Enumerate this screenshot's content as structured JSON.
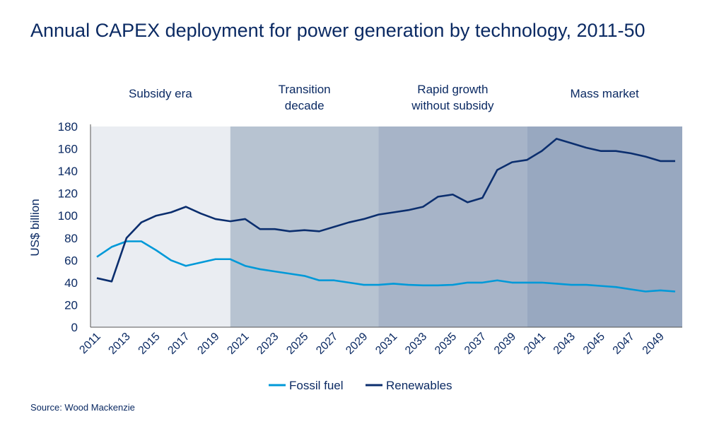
{
  "title": "Annual CAPEX deployment for power generation by technology, 2011-50",
  "source": "Source: Wood Mackenzie",
  "colors": {
    "fossil": "#0099d8",
    "renewables": "#0b2e6e",
    "text": "#0b2a63",
    "era_fills": [
      "#eaedf2",
      "#b7c3d1",
      "#a7b4c8",
      "#98a8c0"
    ]
  },
  "chart_data": {
    "type": "line",
    "title": "Annual CAPEX deployment for power generation by technology, 2011-50",
    "ylabel": "US$ billion",
    "xlabel": "",
    "ylim": [
      0,
      180
    ],
    "yticks": [
      0,
      20,
      40,
      60,
      80,
      100,
      120,
      140,
      160,
      180
    ],
    "grid": false,
    "legend": "bottom",
    "x": [
      2011,
      2012,
      2013,
      2014,
      2015,
      2016,
      2017,
      2018,
      2019,
      2020,
      2021,
      2022,
      2023,
      2024,
      2025,
      2026,
      2027,
      2028,
      2029,
      2030,
      2031,
      2032,
      2033,
      2034,
      2035,
      2036,
      2037,
      2038,
      2039,
      2040,
      2041,
      2042,
      2043,
      2044,
      2045,
      2046,
      2047,
      2048,
      2049,
      2050
    ],
    "xtick_labels": [
      "2011",
      "2013",
      "2015",
      "2017",
      "2019",
      "2021",
      "2023",
      "2025",
      "2027",
      "2029",
      "2031",
      "2033",
      "2035",
      "2037",
      "2039",
      "2041",
      "2043",
      "2045",
      "2047",
      "2049"
    ],
    "series": [
      {
        "name": "Fossil fuel",
        "values": [
          63,
          72,
          77,
          77,
          69,
          60,
          55,
          58,
          61,
          61,
          55,
          52,
          50,
          48,
          46,
          42,
          42,
          40,
          38,
          38,
          39,
          38,
          37.5,
          37.5,
          38,
          40,
          40,
          42,
          40,
          40,
          40,
          39,
          38,
          38,
          37,
          36,
          34,
          32,
          33,
          32
        ]
      },
      {
        "name": "Renewables",
        "values": [
          44,
          41,
          80,
          94,
          100,
          103,
          108,
          102,
          97,
          95,
          97,
          88,
          88,
          86,
          87,
          86,
          90,
          94,
          97,
          101,
          103,
          105,
          108,
          117,
          119,
          112,
          116,
          141,
          148,
          150,
          158,
          169,
          165,
          161,
          158,
          158,
          156,
          153,
          149,
          149
        ]
      }
    ],
    "eras": [
      {
        "label_lines": [
          "Subsidy era"
        ],
        "from": 2011,
        "to": 2020
      },
      {
        "label_lines": [
          "Transition",
          "decade"
        ],
        "from": 2020,
        "to": 2030
      },
      {
        "label_lines": [
          "Rapid growth",
          "without subsidy"
        ],
        "from": 2030,
        "to": 2040
      },
      {
        "label_lines": [
          "Mass market"
        ],
        "from": 2040,
        "to": 2050
      }
    ]
  }
}
